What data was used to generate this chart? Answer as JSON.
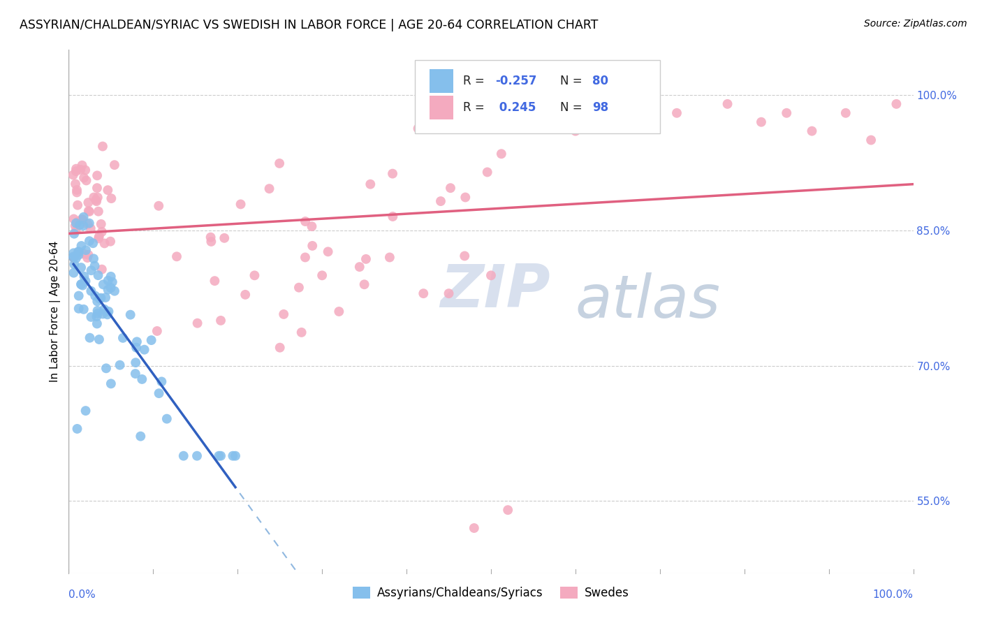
{
  "title": "ASSYRIAN/CHALDEAN/SYRIAC VS SWEDISH IN LABOR FORCE | AGE 20-64 CORRELATION CHART",
  "source": "Source: ZipAtlas.com",
  "ylabel": "In Labor Force | Age 20-64",
  "ytick_values": [
    0.55,
    0.7,
    0.85,
    1.0
  ],
  "xlim": [
    0.0,
    1.0
  ],
  "ylim": [
    0.47,
    1.05
  ],
  "blue_color": "#85BFEC",
  "pink_color": "#F4AABF",
  "blue_line_color": "#3060C0",
  "pink_line_color": "#E06080",
  "blue_dash_color": "#90B8E0",
  "grid_color": "#CCCCCC",
  "tick_color": "#4169E1",
  "title_fontsize": 12.5,
  "legend_R_blue": "-0.257",
  "legend_N_blue": "80",
  "legend_R_pink": "0.245",
  "legend_N_pink": "98"
}
